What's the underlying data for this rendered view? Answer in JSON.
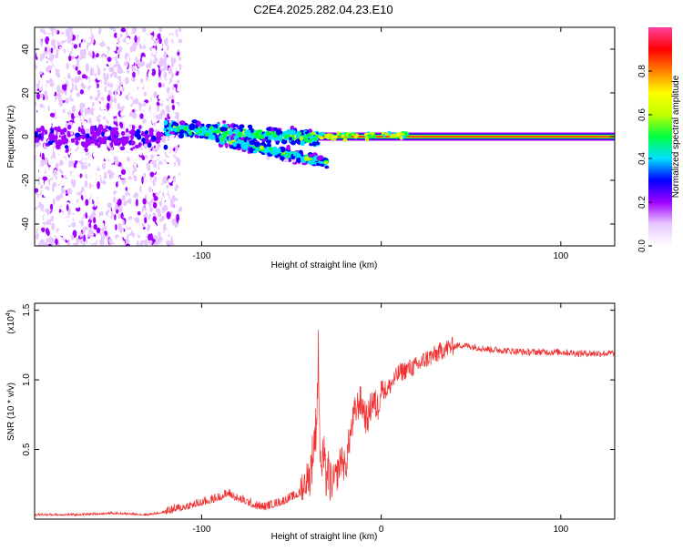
{
  "title": "C2E4.2025.282.04.23.E10",
  "chart_data": [
    {
      "type": "heatmap",
      "title": "C2E4.2025.282.04.23.E10",
      "xlabel": "Height of straight line (km)",
      "ylabel": "Frequency (Hz)",
      "xlim": [
        -193,
        130
      ],
      "ylim": [
        -50,
        50
      ],
      "xticks": [
        -100,
        0,
        100
      ],
      "xtick_labels": [
        "-100",
        "",
        "100"
      ],
      "yticks": [
        -40,
        -20,
        0,
        20,
        40
      ],
      "ytick_labels": [
        "-40",
        "-20",
        "0",
        "20",
        "40"
      ],
      "colorbar": {
        "label": "Normalized spectral amplitude",
        "range": [
          0,
          1
        ],
        "ticks": [
          0.0,
          0.2,
          0.4,
          0.6,
          0.8
        ],
        "tick_labels": [
          "0.0",
          "0.2",
          "0.4",
          "0.6",
          "0.8"
        ],
        "colors": [
          "#ffffff",
          "#e8c8ff",
          "#a000ff",
          "#0000ff",
          "#00e0ff",
          "#00ff40",
          "#c0ff00",
          "#ffff00",
          "#ff8000",
          "#ff0000",
          "#ff40a0"
        ]
      },
      "features": [
        {
          "name": "noise",
          "x_range": [
            -193,
            -120
          ],
          "freq_range": [
            -50,
            50
          ],
          "amplitude": 0.15
        },
        {
          "name": "scattered-branch-upper",
          "x_range": [
            -120,
            -35
          ],
          "freq_center_start": 4,
          "freq_center_end": -1,
          "amplitude": 0.3
        },
        {
          "name": "scattered-branch-lower",
          "x_range": [
            -90,
            -30
          ],
          "freq_center_start": -1,
          "freq_center_end": -12,
          "amplitude": 0.3
        },
        {
          "name": "direct-wave",
          "x_range": [
            -35,
            130
          ],
          "freq_center": 0,
          "amplitude": 0.95
        }
      ]
    },
    {
      "type": "line",
      "xlabel": "Height of straight line (km)",
      "ylabel": "SNR (10 * v/v)",
      "scale_label": "(x10",
      "scale_exp": "4",
      "scale_close": ")",
      "xlim": [
        -193,
        130
      ],
      "ylim": [
        0,
        1.55
      ],
      "xticks": [
        -100,
        0,
        100
      ],
      "xtick_labels": [
        "-100",
        "0",
        "100"
      ],
      "yticks": [
        0.5,
        1.0,
        1.5
      ],
      "ytick_labels": [
        "0.5",
        "1.0",
        "1.5"
      ],
      "series": [
        {
          "name": "SNR",
          "color": "#f03030",
          "x": [
            -193,
            -170,
            -150,
            -130,
            -120,
            -110,
            -100,
            -90,
            -85,
            -80,
            -75,
            -70,
            -65,
            -60,
            -55,
            -50,
            -45,
            -40,
            -36,
            -35,
            -34,
            -33,
            -32,
            -31,
            -30,
            -28,
            -25,
            -22,
            -20,
            -18,
            -15,
            -12,
            -10,
            -8,
            -5,
            -2,
            0,
            3,
            6,
            10,
            15,
            20,
            25,
            30,
            35,
            40,
            45,
            50,
            55,
            60,
            70,
            80,
            90,
            100,
            110,
            120,
            130
          ],
          "y": [
            0.03,
            0.03,
            0.04,
            0.03,
            0.05,
            0.08,
            0.11,
            0.15,
            0.18,
            0.14,
            0.12,
            0.09,
            0.08,
            0.1,
            0.12,
            0.15,
            0.18,
            0.28,
            0.7,
            1.2,
            0.55,
            0.4,
            0.45,
            0.3,
            0.35,
            0.25,
            0.3,
            0.45,
            0.35,
            0.55,
            0.75,
            0.85,
            0.8,
            0.7,
            0.85,
            0.8,
            0.95,
            0.92,
            0.98,
            1.05,
            1.08,
            1.1,
            1.15,
            1.18,
            1.22,
            1.24,
            1.25,
            1.24,
            1.23,
            1.22,
            1.21,
            1.2,
            1.2,
            1.2,
            1.19,
            1.19,
            1.19
          ]
        }
      ]
    }
  ]
}
